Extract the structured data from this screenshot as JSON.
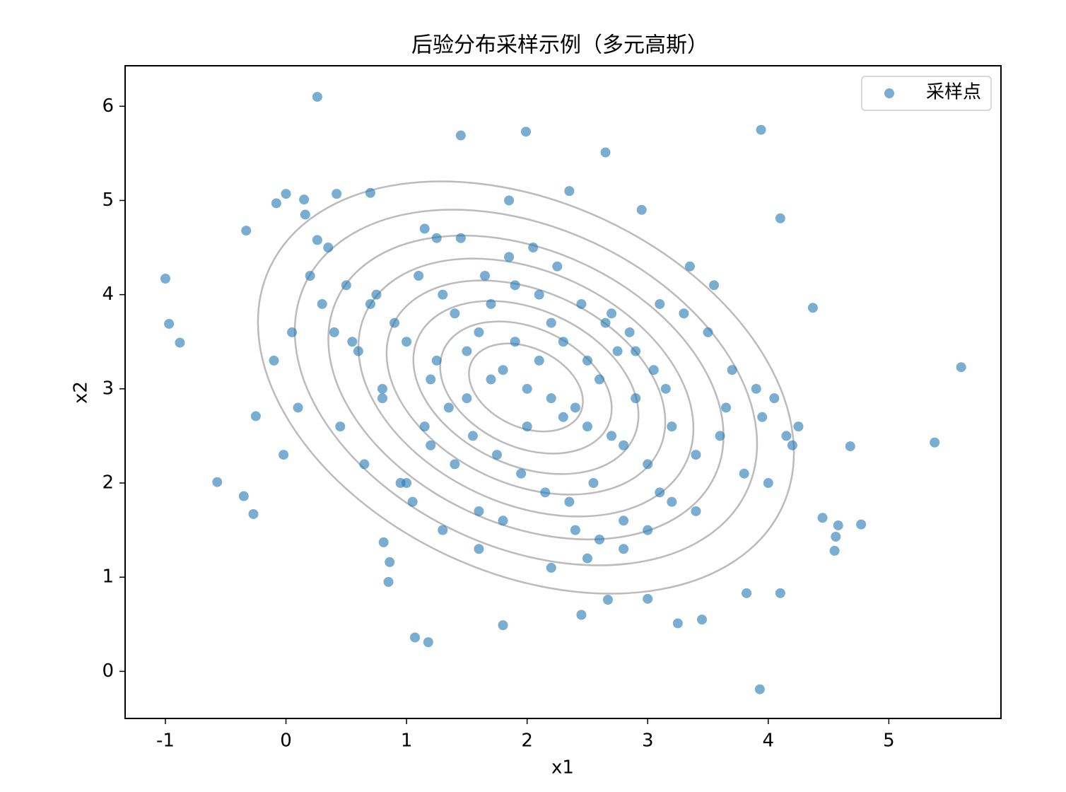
{
  "chart_data": {
    "type": "scatter",
    "title": "后验分布采样示例（多元高斯）",
    "x_label": "x1",
    "y_label": "x2",
    "xlim": [
      -1.334,
      5.93
    ],
    "ylim": [
      -0.5,
      6.43
    ],
    "xticks": [
      -1,
      0,
      1,
      2,
      3,
      4,
      5
    ],
    "yticks": [
      0,
      1,
      2,
      3,
      4,
      5,
      6
    ],
    "legend": "upper right",
    "series": [
      {
        "name": "采样点",
        "color": "#1f77b4",
        "x": [
          0.26,
          -1.0,
          -0.97,
          -0.88,
          5.6,
          5.38,
          4.68,
          3.93,
          3.94,
          1.07,
          1.18,
          1.8,
          2.45,
          -0.57,
          -0.35,
          -0.27,
          -0.33,
          0.0,
          4.37,
          4.1,
          1.99,
          1.45,
          2.65,
          4.58,
          4.77,
          4.45,
          4.55,
          4.56,
          3.82,
          4.1,
          3.45,
          3.25,
          2.67,
          3.0,
          0.86,
          0.85,
          0.81,
          -0.02,
          -0.25,
          0.26,
          -0.08,
          0.16,
          0.42,
          0.7,
          0.15,
          1.2,
          1.5,
          1.8,
          2.0,
          2.2,
          2.4,
          1.6,
          1.9,
          2.1,
          2.3,
          2.5,
          2.7,
          1.4,
          1.7,
          2.6,
          2.8,
          3.0,
          1.3,
          1.1,
          2.9,
          3.2,
          3.4,
          0.9,
          0.7,
          0.5,
          3.6,
          3.8,
          4.0,
          4.2,
          1.0,
          1.55,
          1.75,
          1.95,
          2.15,
          2.35,
          2.55,
          1.65,
          1.85,
          2.05,
          2.25,
          2.45,
          2.65,
          1.45,
          2.75,
          2.85,
          3.05,
          3.15,
          1.25,
          1.35,
          1.15,
          0.6,
          0.8,
          0.4,
          0.3,
          0.2,
          0.1,
          -0.1,
          0.05,
          0.45,
          0.65,
          0.95,
          1.05,
          3.3,
          3.5,
          3.7,
          3.9,
          4.15,
          4.05,
          3.55,
          3.35,
          2.0,
          2.2,
          1.8,
          1.6,
          2.4,
          2.6,
          2.8,
          1.4,
          1.2,
          3.0,
          3.2,
          2.1,
          1.9,
          2.3,
          1.7,
          2.5,
          2.7,
          1.5,
          2.9,
          3.1,
          1.0,
          1.3,
          1.6,
          2.2,
          2.5,
          2.8,
          3.1,
          3.4,
          0.8,
          0.55,
          3.65,
          3.95,
          1.85,
          2.35,
          2.95,
          1.25,
          0.35,
          4.25,
          0.75,
          1.15
        ],
        "values": [
          6.1,
          4.17,
          3.69,
          3.49,
          3.23,
          2.43,
          2.39,
          -0.19,
          5.75,
          0.36,
          0.31,
          0.49,
          0.6,
          2.01,
          1.86,
          1.67,
          4.68,
          5.07,
          3.86,
          4.81,
          5.73,
          5.69,
          5.51,
          1.55,
          1.56,
          1.63,
          1.28,
          1.43,
          0.83,
          0.83,
          0.55,
          0.51,
          0.76,
          0.77,
          1.16,
          0.95,
          1.37,
          2.3,
          2.71,
          4.58,
          4.97,
          4.85,
          5.07,
          5.08,
          5.01,
          3.1,
          3.4,
          3.2,
          3.0,
          2.9,
          2.8,
          3.6,
          3.5,
          3.3,
          2.7,
          2.6,
          2.5,
          3.8,
          3.9,
          3.1,
          2.4,
          2.2,
          4.0,
          4.2,
          2.9,
          2.6,
          2.3,
          3.7,
          3.9,
          4.1,
          2.5,
          2.1,
          2.0,
          2.4,
          3.5,
          2.5,
          2.3,
          2.1,
          1.9,
          1.8,
          2.0,
          4.2,
          4.4,
          4.5,
          4.3,
          3.9,
          3.7,
          4.6,
          3.4,
          3.6,
          3.2,
          3.0,
          3.3,
          2.8,
          2.6,
          3.4,
          3.0,
          3.6,
          3.9,
          4.2,
          2.8,
          3.3,
          3.6,
          2.6,
          2.2,
          2.0,
          1.8,
          3.8,
          3.6,
          3.2,
          3.0,
          2.5,
          2.9,
          4.1,
          4.3,
          2.6,
          3.7,
          1.6,
          1.7,
          1.5,
          1.4,
          1.3,
          2.2,
          2.4,
          1.5,
          1.8,
          4.0,
          4.1,
          3.5,
          3.1,
          3.3,
          3.8,
          2.9,
          3.4,
          3.9,
          2.0,
          1.5,
          1.3,
          1.1,
          1.2,
          1.6,
          1.9,
          1.7,
          2.9,
          3.5,
          2.8,
          2.7,
          5.0,
          5.1,
          4.9,
          4.6,
          4.5,
          2.6,
          4.0,
          4.7
        ]
      }
    ]
  }
}
